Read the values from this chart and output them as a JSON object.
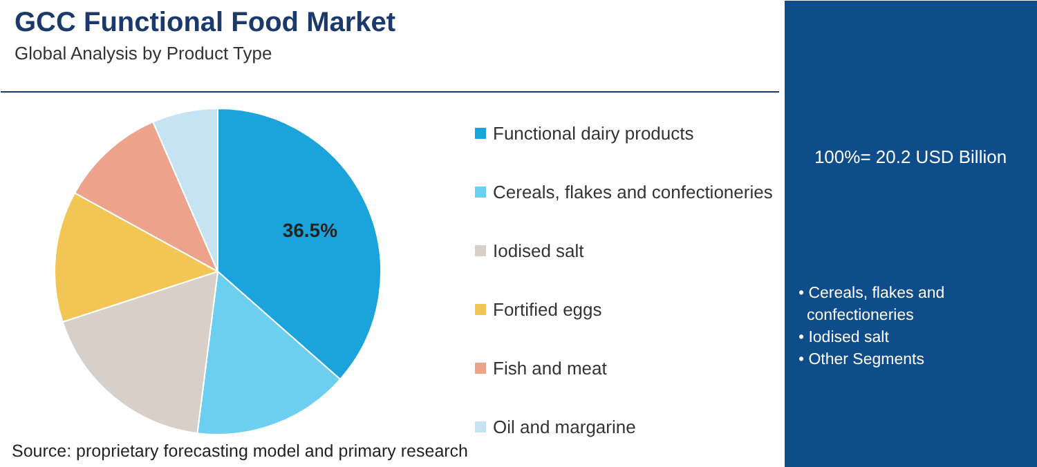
{
  "chart_data": {
    "type": "pie",
    "title": "GCC Functional Food Market",
    "subtitle": "Global Analysis by Product Type",
    "categories": [
      "Functional dairy products",
      "Cereals, flakes and confectioneries",
      "Iodised salt",
      "Fortified eggs",
      "Fish and meat",
      "Oil and margarine"
    ],
    "values": [
      36.5,
      15.5,
      18,
      13,
      10.5,
      6.5
    ],
    "colors": [
      "#1ba3dc",
      "#6dcff0",
      "#d9cfc9",
      "#f1c654",
      "#eda38b",
      "#c5e3f2"
    ],
    "value_labels": [
      "36.5%",
      null,
      null,
      null,
      null,
      null
    ],
    "legend": "right",
    "annotations": [
      "100%= 20.2 USD Billion",
      "• Cereals, flakes and confectioneries",
      "• Iodised salt",
      "• Other Segments",
      "Source: proprietary forecasting model and primary research"
    ]
  }
}
